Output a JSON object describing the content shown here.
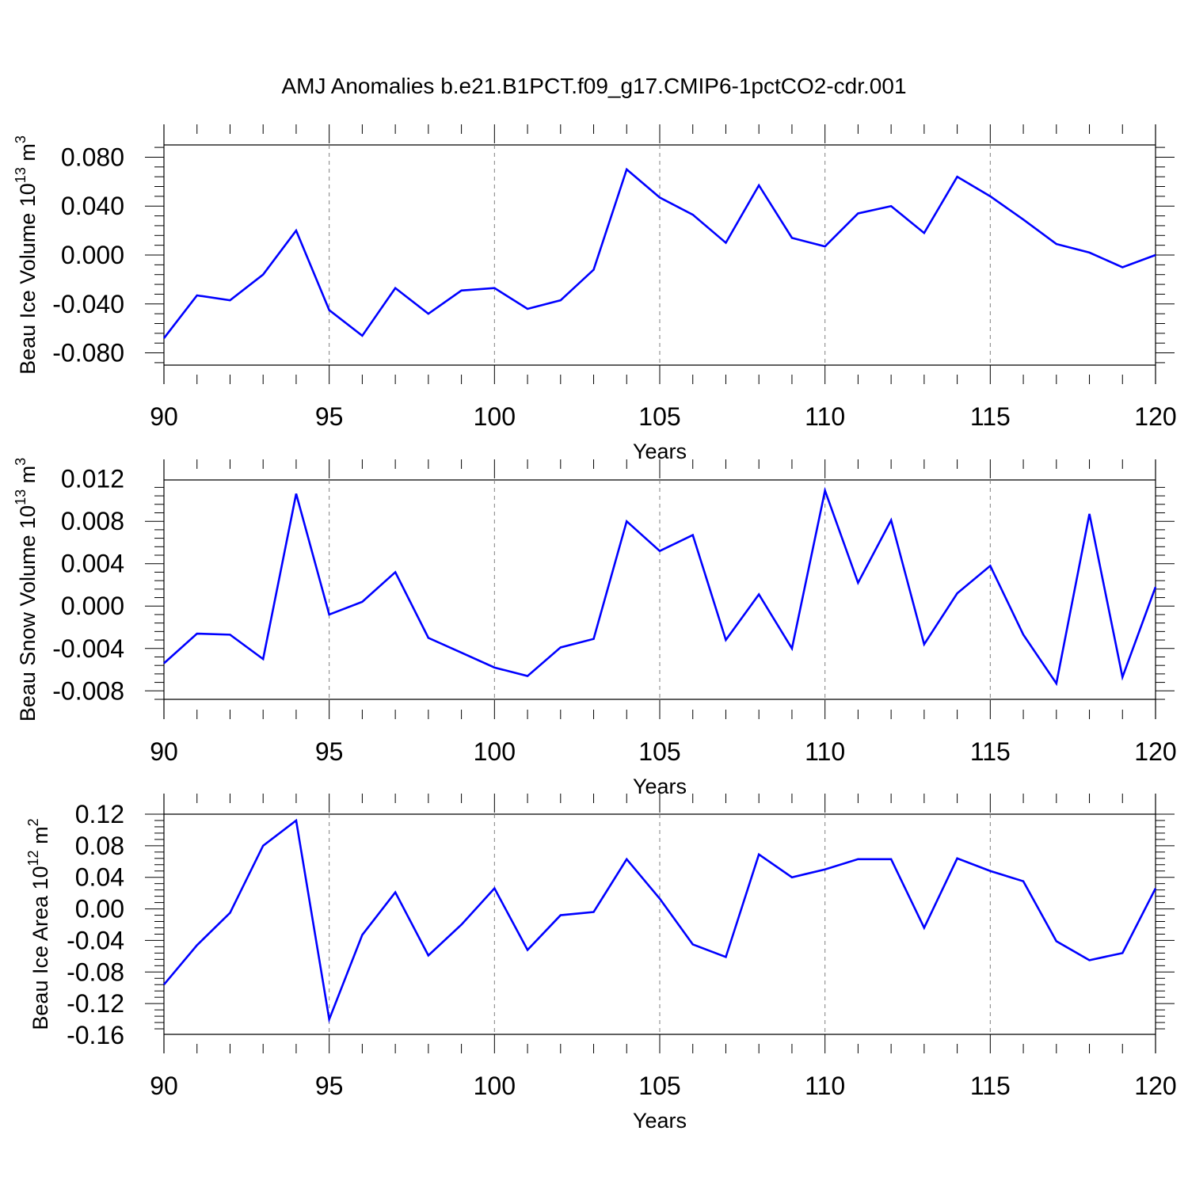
{
  "title": "AMJ Anomalies b.e21.B1PCT.f09_g17.CMIP6-1pctCO2-cdr.001",
  "colors": {
    "line": "#0000ff",
    "axis": "#000000",
    "grid": "#808080"
  },
  "chart_data": [
    {
      "type": "line",
      "title": "AMJ Anomalies b.e21.B1PCT.f09_g17.CMIP6-1pctCO2-cdr.001",
      "xlabel": "Years",
      "ylabel": {
        "base": "Beau Ice Volume 10",
        "sup": "13",
        "unit": " m",
        "unit_sup": "3"
      },
      "xlim": [
        90,
        120
      ],
      "ylim": [
        -0.09,
        0.09
      ],
      "x_ticks": [
        "90",
        "95",
        "100",
        "105",
        "110",
        "115",
        "120"
      ],
      "y_ticks": [
        "0.080",
        "0.040",
        "0.000",
        "-0.040",
        "-0.080"
      ],
      "grid": "vertical dashed at major x ticks",
      "x": [
        90,
        91,
        92,
        93,
        94,
        95,
        96,
        97,
        98,
        99,
        100,
        101,
        102,
        103,
        104,
        105,
        106,
        107,
        108,
        109,
        110,
        111,
        112,
        113,
        114,
        115,
        116,
        117,
        118,
        119,
        120
      ],
      "series": [
        {
          "values": [
            -0.068,
            -0.033,
            -0.037,
            -0.016,
            0.02,
            -0.045,
            -0.066,
            -0.027,
            -0.048,
            -0.029,
            -0.027,
            -0.044,
            -0.037,
            -0.012,
            0.07,
            0.047,
            0.033,
            0.01,
            0.057,
            0.014,
            0.007,
            0.034,
            0.04,
            0.018,
            0.064,
            0.048,
            0.029,
            0.009,
            0.002,
            -0.01,
            0.0
          ]
        }
      ]
    },
    {
      "type": "line",
      "xlabel": "Years",
      "ylabel": {
        "base": "Beau Snow Volume 10",
        "sup": "13",
        "unit": " m",
        "unit_sup": "3"
      },
      "xlim": [
        90,
        120
      ],
      "ylim": [
        -0.0088,
        0.0119
      ],
      "x_ticks": [
        "90",
        "95",
        "100",
        "105",
        "110",
        "115",
        "120"
      ],
      "y_ticks": [
        "0.012",
        "0.008",
        "0.004",
        "0.000",
        "-0.004",
        "-0.008"
      ],
      "grid": "vertical dashed at major x ticks",
      "x": [
        90,
        91,
        92,
        93,
        94,
        95,
        96,
        97,
        98,
        99,
        100,
        101,
        102,
        103,
        104,
        105,
        106,
        107,
        108,
        109,
        110,
        111,
        112,
        113,
        114,
        115,
        116,
        117,
        118,
        119,
        120
      ],
      "series": [
        {
          "values": [
            -0.0054,
            -0.0026,
            -0.0027,
            -0.005,
            0.0106,
            -0.0008,
            0.0004,
            0.0032,
            -0.003,
            -0.0044,
            -0.0058,
            -0.0066,
            -0.0039,
            -0.0031,
            0.008,
            0.0052,
            0.0067,
            -0.0032,
            0.0011,
            -0.004,
            0.0109,
            0.0022,
            0.0081,
            -0.0036,
            0.0012,
            0.0038,
            -0.0027,
            -0.0073,
            0.0087,
            -0.0067,
            0.0018
          ]
        }
      ]
    },
    {
      "type": "line",
      "xlabel": "Years",
      "ylabel": {
        "base": "Beau Ice Area 10",
        "sup": "12",
        "unit": " m",
        "unit_sup": "2"
      },
      "xlim": [
        90,
        120
      ],
      "ylim": [
        -0.159,
        0.12
      ],
      "x_ticks": [
        "90",
        "95",
        "100",
        "105",
        "110",
        "115",
        "120"
      ],
      "y_ticks": [
        "0.12",
        "0.08",
        "0.04",
        "0.00",
        "-0.04",
        "-0.08",
        "-0.12",
        "-0.16"
      ],
      "grid": "vertical dashed at major x ticks",
      "x": [
        90,
        91,
        92,
        93,
        94,
        95,
        96,
        97,
        98,
        99,
        100,
        101,
        102,
        103,
        104,
        105,
        106,
        107,
        108,
        109,
        110,
        111,
        112,
        113,
        114,
        115,
        116,
        117,
        118,
        119,
        120
      ],
      "series": [
        {
          "values": [
            -0.096,
            -0.046,
            -0.005,
            0.08,
            0.112,
            -0.14,
            -0.033,
            0.021,
            -0.059,
            -0.02,
            0.026,
            -0.052,
            -0.008,
            -0.004,
            0.063,
            0.013,
            -0.045,
            -0.061,
            0.069,
            0.04,
            0.05,
            0.063,
            0.063,
            -0.024,
            0.064,
            0.048,
            0.035,
            -0.041,
            -0.065,
            -0.056,
            0.026
          ]
        }
      ]
    }
  ]
}
